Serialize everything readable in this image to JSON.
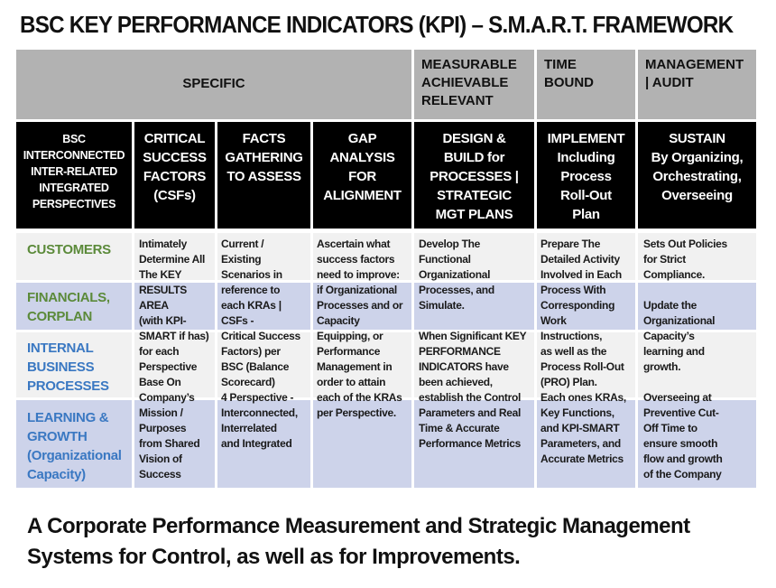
{
  "title": "BSC KEY PERFORMANCE INDICATORS (KPI) – S.M.A.R.T. FRAMEWORK",
  "smart_headers": {
    "specific": "SPECIFIC",
    "measurable": "MEASURABLE\nACHIEVABLE\nRELEVANT",
    "time": "TIME\nBOUND",
    "management": "MANAGEMENT\n| AUDIT"
  },
  "column_headers": [
    "BSC\nINTERCONNECTED\nINTER-RELATED\nINTEGRATED\nPERSPECTIVES",
    "CRITICAL\nSUCCESS\nFACTORS\n(CSFs)",
    "FACTS\nGATHERING\nTO ASSESS",
    "GAP\nANALYSIS\nFOR\nALIGNMENT",
    "DESIGN &\nBUILD for\nPROCESSES |\nSTRATEGIC\nMGT PLANS",
    "IMPLEMENT\nIncluding\nProcess\nRoll-Out\nPlan",
    "SUSTAIN\nBy Organizing,\nOrchestrating,\nOverseeing"
  ],
  "perspectives": [
    {
      "label": "CUSTOMERS",
      "color": "#5b8a3a"
    },
    {
      "label": "FINANCIALS,\nCORPLAN",
      "color": "#5b8a3a"
    },
    {
      "label": "INTERNAL\nBUSINESS\nPROCESSES",
      "color": "#3a78c2"
    },
    {
      "label": "LEARNING &\nGROWTH\n(Organizational\nCapacity)",
      "color": "#3a78c2"
    }
  ],
  "column_texts": [
    "Intimately\nDetermine All\nThe KEY\nRESULTS\nAREA\n(with KPI-\nSMART if has)\nfor each\nPerspective\nBase On\nCompany’s\nMission /\nPurposes\nfrom Shared\nVision of\nSuccess",
    "Current /\nExisting\nScenarios in\nreference to\neach KRAs |\nCSFs -\nCritical Success\nFactors) per\nBSC (Balance\nScorecard)\n4 Perspective -\nInterconnected,\nInterrelated\nand Integrated",
    "Ascertain what\nsuccess factors\nneed to improve:\nif Organizational\nProcesses and or\nCapacity\nEquipping, or\nPerformance\nManagement in\norder to attain\neach of the KRAs\nper Perspective.",
    "Develop The\nFunctional\nOrganizational\nProcesses, and\nSimulate.\n\nWhen Significant KEY\nPERFORMANCE\nINDICATORS have\nbeen achieved,\nestablish the Control\nParameters and Real\nTime & Accurate\nPerformance Metrics",
    "Prepare The\nDetailed Activity\nInvolved in Each\nProcess With\nCorresponding\nWork\nInstructions,\nas well as the\nProcess Roll-Out\n(PRO) Plan.\nEach ones KRAs,\nKey Functions,\nand KPI-SMART\nParameters, and\nAccurate Metrics",
    "Sets Out Policies\nfor Strict\nCompliance.\n\nUpdate the\nOrganizational\nCapacity’s\nlearning and\ngrowth.\n\nOverseeing at\nPreventive Cut-\nOff Time to\nensure smooth\nflow and growth\nof the Company"
  ],
  "footer": "A Corporate Performance Measurement and Strategic Management Systems for Control, as well as for Improvements.",
  "colors": {
    "header_gray": "#b2b2b2",
    "row_gray": "#f1f1f1",
    "row_lavender": "#cdd3ea"
  }
}
